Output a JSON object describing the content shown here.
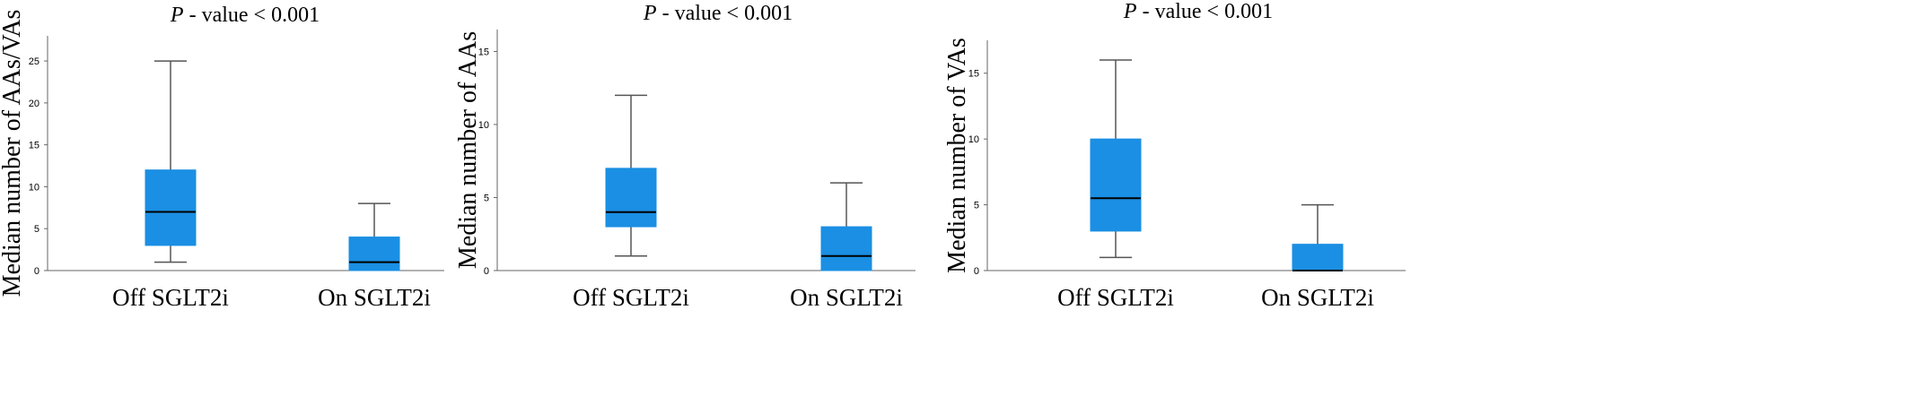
{
  "chart_data": [
    {
      "type": "boxplot",
      "title_italic": "P",
      "title_rest": " - value < 0.001",
      "ylabel": "Median number of AAs/VAs",
      "categories": [
        "Off SGLT2i",
        "On SGLT2i"
      ],
      "boxes": [
        {
          "category": "Off SGLT2i",
          "min": 1,
          "q1": 3,
          "median": 7,
          "q3": 12,
          "max": 25
        },
        {
          "category": "On SGLT2i",
          "min": 0,
          "q1": 0,
          "median": 1,
          "q3": 4,
          "max": 8
        }
      ],
      "yticks": [
        0,
        5,
        10,
        15,
        20,
        25
      ],
      "ylim": [
        0,
        28
      ],
      "box_color": "#1a8fe3"
    },
    {
      "type": "boxplot",
      "title_italic": "P",
      "title_rest": " - value < 0.001",
      "ylabel": "Median number of AAs",
      "categories": [
        "Off SGLT2i",
        "On SGLT2i"
      ],
      "boxes": [
        {
          "category": "Off SGLT2i",
          "min": 1,
          "q1": 3,
          "median": 4,
          "q3": 7,
          "max": 12
        },
        {
          "category": "On SGLT2i",
          "min": 0,
          "q1": 0,
          "median": 1,
          "q3": 3,
          "max": 6
        }
      ],
      "yticks": [
        0,
        5,
        10,
        15
      ],
      "ylim": [
        0,
        16.5
      ],
      "box_color": "#1a8fe3"
    },
    {
      "type": "boxplot",
      "title_italic": "P",
      "title_rest": " - value < 0.001",
      "ylabel": "Median number of VAs",
      "categories": [
        "Off SGLT2i",
        "On SGLT2i"
      ],
      "boxes": [
        {
          "category": "Off SGLT2i",
          "min": 1,
          "q1": 3,
          "median": 5.5,
          "q3": 10,
          "max": 16
        },
        {
          "category": "On SGLT2i",
          "min": 0,
          "q1": 0,
          "median": 0,
          "q3": 2,
          "max": 5
        }
      ],
      "yticks": [
        0,
        5,
        10,
        15
      ],
      "ylim": [
        0,
        17.5
      ],
      "box_color": "#1a8fe3"
    }
  ]
}
